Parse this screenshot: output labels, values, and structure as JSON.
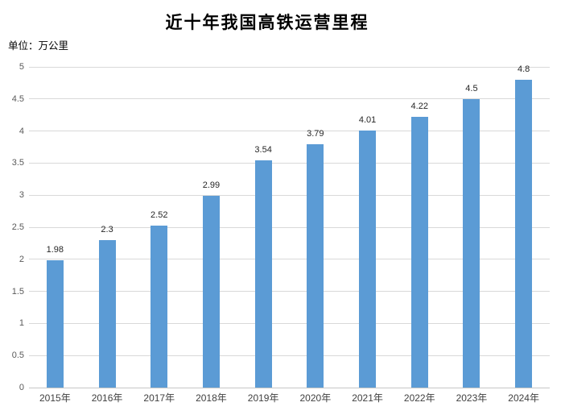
{
  "title": "近十年我国高铁运营里程",
  "unit_label": "单位：万公里",
  "colors": {
    "bar": "#5B9BD5",
    "gridline": "#d9d9d9",
    "axis_line": "#c6c6c6",
    "y_tick_text": "#595959",
    "x_tick_text": "#3f3f3f",
    "data_label_text": "#262626",
    "title_text": "#000000",
    "background": "#ffffff"
  },
  "chart_data": {
    "type": "bar",
    "title": "近十年我国高铁运营里程",
    "subtitle": "单位：万公里",
    "categories": [
      "2015年",
      "2016年",
      "2017年",
      "2018年",
      "2019年",
      "2020年",
      "2021年",
      "2022年",
      "2023年",
      "2024年"
    ],
    "values": [
      1.98,
      2.3,
      2.52,
      2.99,
      3.54,
      3.79,
      4.01,
      4.22,
      4.5,
      4.8
    ],
    "data_labels": [
      "1.98",
      "2.3",
      "2.52",
      "2.99",
      "3.54",
      "3.79",
      "4.01",
      "4.22",
      "4.5",
      "4.8"
    ],
    "xlabel": "",
    "ylabel": "单位：万公里",
    "ylim": [
      0,
      5
    ],
    "ytick_step": 0.5,
    "yticks": [
      "0",
      "0.5",
      "1",
      "1.5",
      "2",
      "2.5",
      "3",
      "3.5",
      "4",
      "4.5",
      "5"
    ],
    "grid": true,
    "legend": false,
    "bar_color": "#5B9BD5"
  }
}
